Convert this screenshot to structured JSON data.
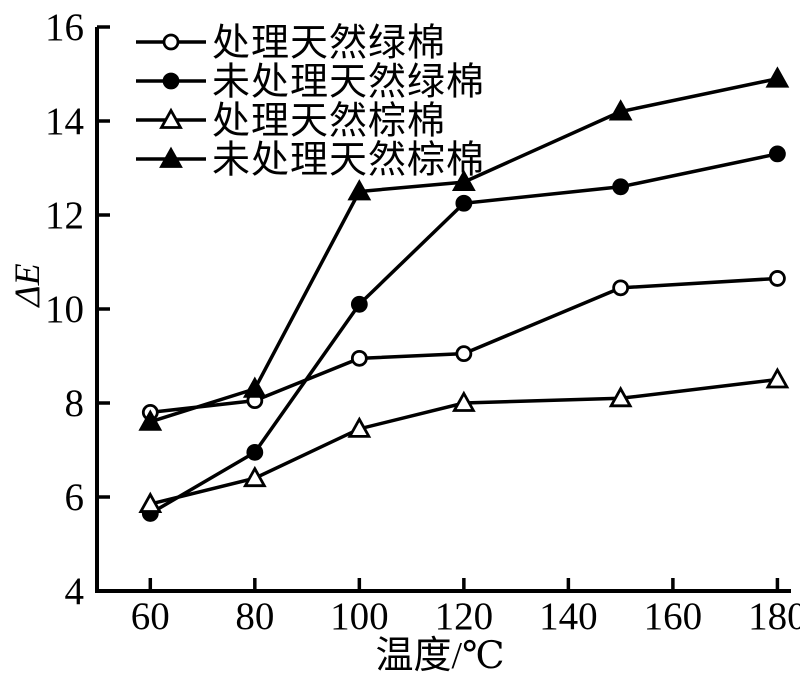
{
  "figure": {
    "background": "#ffffff",
    "ink_color": "#000000"
  },
  "chart_data": {
    "type": "line",
    "title": "",
    "xlabel": "温度/℃",
    "ylabel": "ΔE",
    "x": [
      60,
      80,
      100,
      120,
      150,
      180
    ],
    "series": [
      {
        "name": "处理天然绿棉",
        "marker": "open-circle",
        "values": [
          7.8,
          8.05,
          8.95,
          9.05,
          10.45,
          10.65
        ]
      },
      {
        "name": "未处理天然绿棉",
        "marker": "filled-circle",
        "values": [
          5.65,
          6.95,
          10.1,
          12.25,
          12.6,
          13.3
        ]
      },
      {
        "name": "处理天然棕棉",
        "marker": "open-triangle",
        "values": [
          5.85,
          6.4,
          7.45,
          8.0,
          8.1,
          8.5
        ]
      },
      {
        "name": "未处理天然棕棉",
        "marker": "filled-triangle",
        "values": [
          7.6,
          8.3,
          12.5,
          12.7,
          14.2,
          14.9
        ]
      }
    ],
    "x_tick_values": [
      60,
      80,
      100,
      120,
      140,
      160,
      180
    ],
    "y_tick_values": [
      4,
      6,
      8,
      10,
      12,
      14,
      16
    ],
    "xlim": [
      49.8,
      182.6
    ],
    "ylim": [
      4,
      16
    ],
    "grid": false,
    "legend_position": "top-left",
    "line_color": "#000000"
  }
}
